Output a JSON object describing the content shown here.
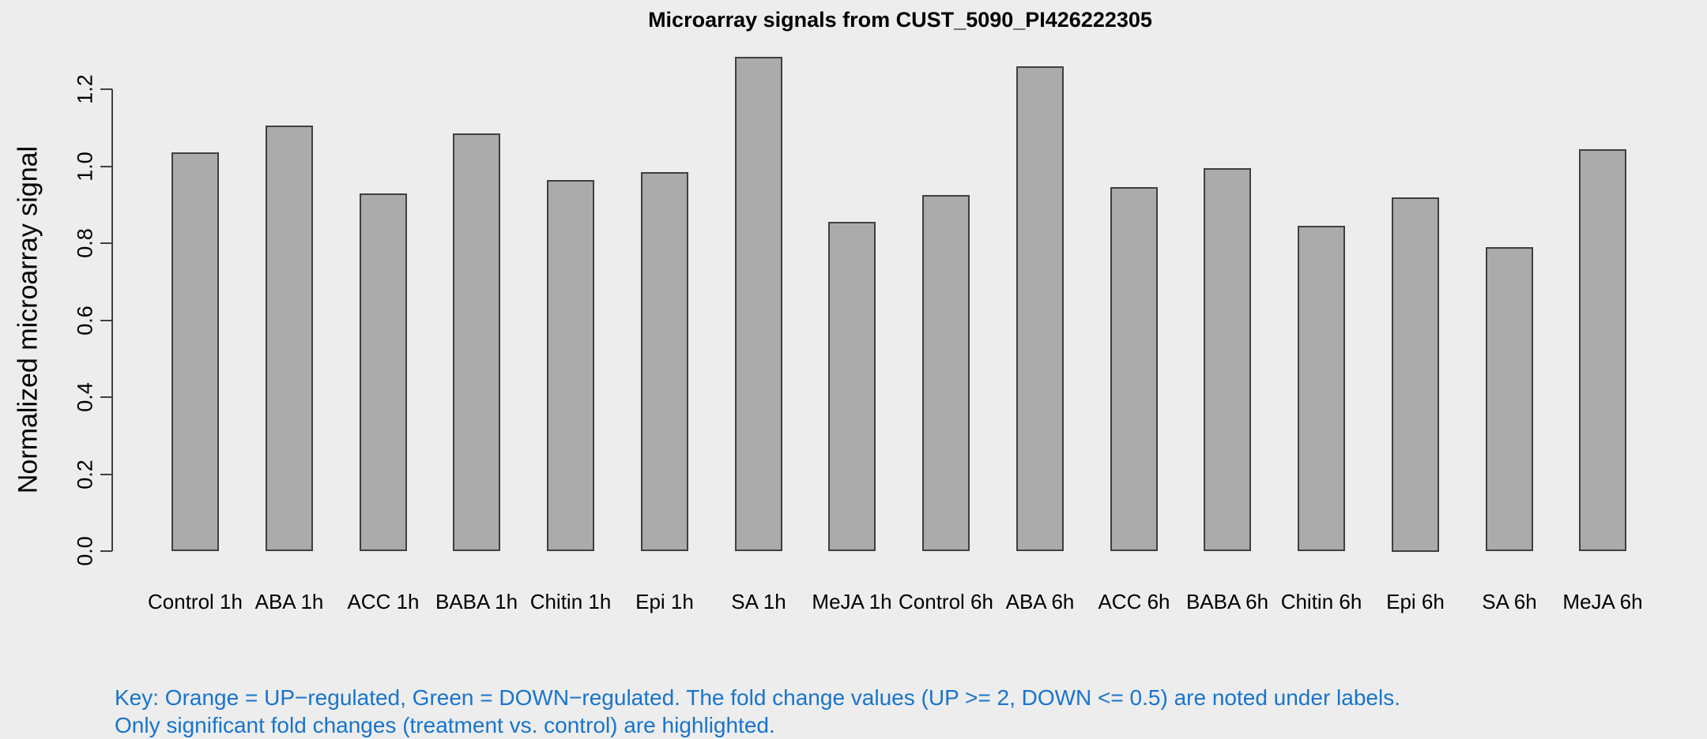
{
  "chart_data": {
    "type": "bar",
    "title": "Microarray signals from CUST_5090_PI426222305",
    "xlabel": "",
    "ylabel": "Normalized microarray signal",
    "categories": [
      "Control 1h",
      "ABA 1h",
      "ACC 1h",
      "BABA 1h",
      "Chitin 1h",
      "Epi 1h",
      "SA 1h",
      "MeJA 1h",
      "Control 6h",
      "ABA 6h",
      "ACC 6h",
      "BABA 6h",
      "Chitin 6h",
      "Epi 6h",
      "SA 6h",
      "MeJA 6h"
    ],
    "values": [
      1.035,
      1.105,
      0.93,
      1.085,
      0.965,
      0.985,
      1.285,
      0.855,
      0.925,
      1.26,
      0.945,
      0.995,
      0.845,
      0.92,
      0.79,
      1.045
    ],
    "ytick_labels": [
      "0.0",
      "0.2",
      "0.4",
      "0.6",
      "0.8",
      "1.0",
      "1.2"
    ],
    "yticks": [
      0.0,
      0.2,
      0.4,
      0.6,
      0.8,
      1.0,
      1.2
    ],
    "ylim": [
      0,
      1.3
    ],
    "grid": false,
    "legend_position": "none",
    "bar_fill_color": "#ABABAB",
    "bar_border_color": "#3F3F3F"
  },
  "key": {
    "line1": "Key: Orange = UP−regulated, Green = DOWN−regulated. The fold change values (UP >= 2, DOWN <= 0.5) are noted under labels.",
    "line2": "Only significant fold changes (treatment vs. control) are highlighted."
  },
  "colors": {
    "background": "#EDEDED",
    "axis": "#404040",
    "title_text": "#000000",
    "key_text": "#1874CD"
  }
}
